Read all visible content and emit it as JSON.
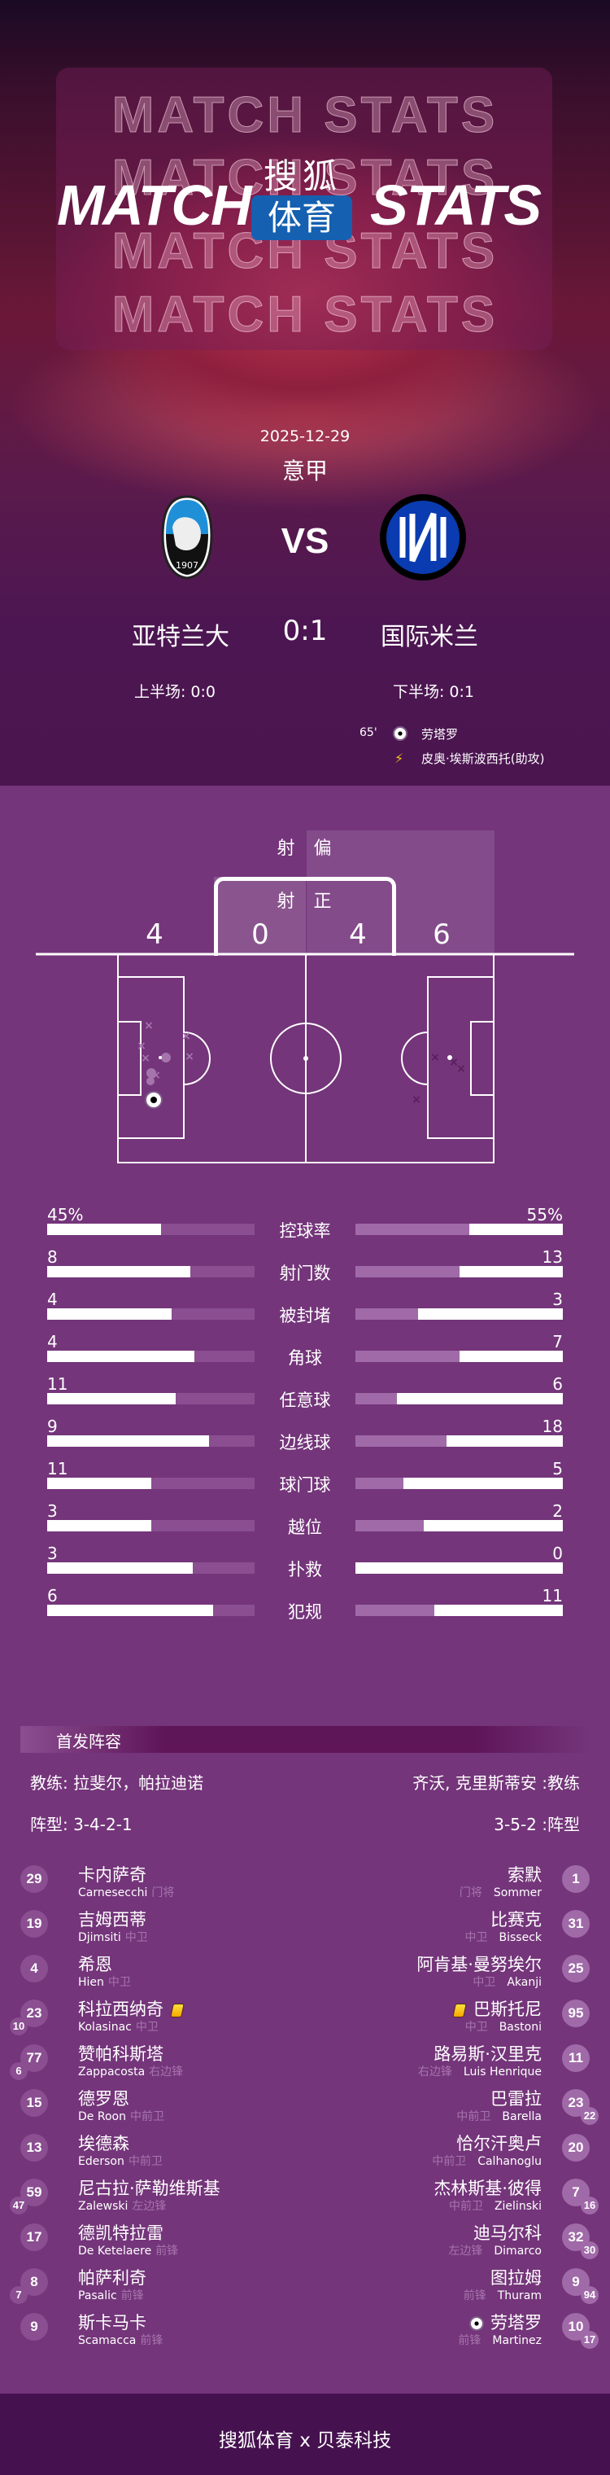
{
  "header": {
    "ghost_text": "MATCH STATS",
    "title_left": "MATCH",
    "title_right": "STATS",
    "brand_top": "搜狐",
    "brand_bottom": "体育",
    "brand_color": "#1560b0"
  },
  "match": {
    "date": "2025-12-29",
    "league": "意甲",
    "vs": "VS",
    "home": {
      "name": "亚特兰大",
      "logo": "atalanta-crest",
      "half_label": "上半场: 0:0"
    },
    "away": {
      "name": "国际米兰",
      "logo": "inter-crest",
      "half_label": "下半场: 0:1"
    },
    "score": "0:1",
    "events": [
      {
        "minute": "65'",
        "icon": "goal-ball-icon",
        "player": "劳塔罗"
      },
      {
        "icon": "assist-boot-icon",
        "player": "皮奥·埃斯波西托(助攻)"
      }
    ]
  },
  "shots": {
    "off_target_label": "射 偏",
    "on_target_label": "射 正",
    "home_off": "4",
    "home_on": "0",
    "away_on": "4",
    "away_off": "6",
    "home_marker_color": "#a574ad",
    "away_marker_color": "#5a1d5c"
  },
  "stats": [
    {
      "label": "控球率",
      "home": "45%",
      "away": "55%",
      "home_fill": 0.55,
      "away_fill": 0.45
    },
    {
      "label": "射门数",
      "home": "8",
      "away": "13",
      "home_fill": 0.69,
      "away_fill": 0.5
    },
    {
      "label": "被封堵",
      "home": "4",
      "away": "3",
      "home_fill": 0.6,
      "away_fill": 0.7
    },
    {
      "label": "角球",
      "home": "4",
      "away": "7",
      "home_fill": 0.71,
      "away_fill": 0.5
    },
    {
      "label": "任意球",
      "home": "11",
      "away": "6",
      "home_fill": 0.62,
      "away_fill": 0.8
    },
    {
      "label": "边线球",
      "home": "9",
      "away": "18",
      "home_fill": 0.78,
      "away_fill": 0.56
    },
    {
      "label": "球门球",
      "home": "11",
      "away": "5",
      "home_fill": 0.5,
      "away_fill": 0.77
    },
    {
      "label": "越位",
      "home": "3",
      "away": "2",
      "home_fill": 0.5,
      "away_fill": 0.67
    },
    {
      "label": "扑救",
      "home": "3",
      "away": "0",
      "home_fill": 0.7,
      "away_fill": 1.0
    },
    {
      "label": "犯规",
      "home": "6",
      "away": "11",
      "home_fill": 0.8,
      "away_fill": 0.62
    }
  ],
  "lineup": {
    "title": "首发阵容",
    "home_coach": "教练: 拉斐尔，帕拉迪诺",
    "away_coach": "齐沃, 克里斯蒂安 :教练",
    "home_formation": "阵型: 3-4-2-1",
    "away_formation": "3-5-2 :阵型",
    "home": [
      {
        "num": "29",
        "cn": "卡内萨奇",
        "en": "Carnesecchi",
        "pos": "门将"
      },
      {
        "num": "19",
        "cn": "吉姆西蒂",
        "en": "Djimsiti",
        "pos": "中卫"
      },
      {
        "num": "4",
        "cn": "希恩",
        "en": "Hien",
        "pos": "中卫"
      },
      {
        "num": "23",
        "cn": "科拉西纳奇",
        "en": "Kolasinac",
        "pos": "中卫",
        "sub": "10",
        "card": "yellow"
      },
      {
        "num": "77",
        "cn": "赞帕科斯塔",
        "en": "Zappacosta",
        "pos": "右边锋",
        "sub": "6"
      },
      {
        "num": "15",
        "cn": "德罗恩",
        "en": "De Roon",
        "pos": "中前卫"
      },
      {
        "num": "13",
        "cn": "埃德森",
        "en": "Ederson",
        "pos": "中前卫"
      },
      {
        "num": "59",
        "cn": "尼古拉·萨勒维斯基",
        "en": "Zalewski",
        "pos": "左边锋",
        "sub": "47"
      },
      {
        "num": "17",
        "cn": "德凯特拉雷",
        "en": "De Ketelaere",
        "pos": "前锋"
      },
      {
        "num": "8",
        "cn": "帕萨利奇",
        "en": "Pasalic",
        "pos": "前锋",
        "sub": "7"
      },
      {
        "num": "9",
        "cn": "斯卡马卡",
        "en": "Scamacca",
        "pos": "前锋"
      }
    ],
    "away": [
      {
        "num": "1",
        "cn": "索默",
        "en": "Sommer",
        "pos": "门将"
      },
      {
        "num": "31",
        "cn": "比赛克",
        "en": "Bisseck",
        "pos": "中卫"
      },
      {
        "num": "25",
        "cn": "阿肯基·曼努埃尔",
        "en": "Akanji",
        "pos": "中卫"
      },
      {
        "num": "95",
        "cn": "巴斯托尼",
        "en": "Bastoni",
        "pos": "中卫",
        "card": "yellow"
      },
      {
        "num": "11",
        "cn": "路易斯·汉里克",
        "en": "Luis Henrique",
        "pos": "右边锋"
      },
      {
        "num": "23",
        "cn": "巴雷拉",
        "en": "Barella",
        "pos": "中前卫",
        "sub": "22"
      },
      {
        "num": "20",
        "cn": "恰尔汗奥卢",
        "en": "Calhanoglu",
        "pos": "中前卫"
      },
      {
        "num": "7",
        "cn": "杰林斯基·彼得",
        "en": "Zielinski",
        "pos": "中前卫",
        "sub": "16"
      },
      {
        "num": "32",
        "cn": "迪马尔科",
        "en": "Dimarco",
        "pos": "左边锋",
        "sub": "30"
      },
      {
        "num": "9",
        "cn": "图拉姆",
        "en": "Thuram",
        "pos": "前锋",
        "sub": "94"
      },
      {
        "num": "10",
        "cn": "劳塔罗",
        "en": "Martinez",
        "pos": "前锋",
        "sub": "17",
        "goal": true
      }
    ]
  },
  "footer": {
    "text": "搜狐体育 x 贝泰科技"
  },
  "colors": {
    "page_bg": "#74357a",
    "footer_bg": "#45114f",
    "home_circle": "#8a4e91",
    "away_circle": "#a06aa8"
  }
}
